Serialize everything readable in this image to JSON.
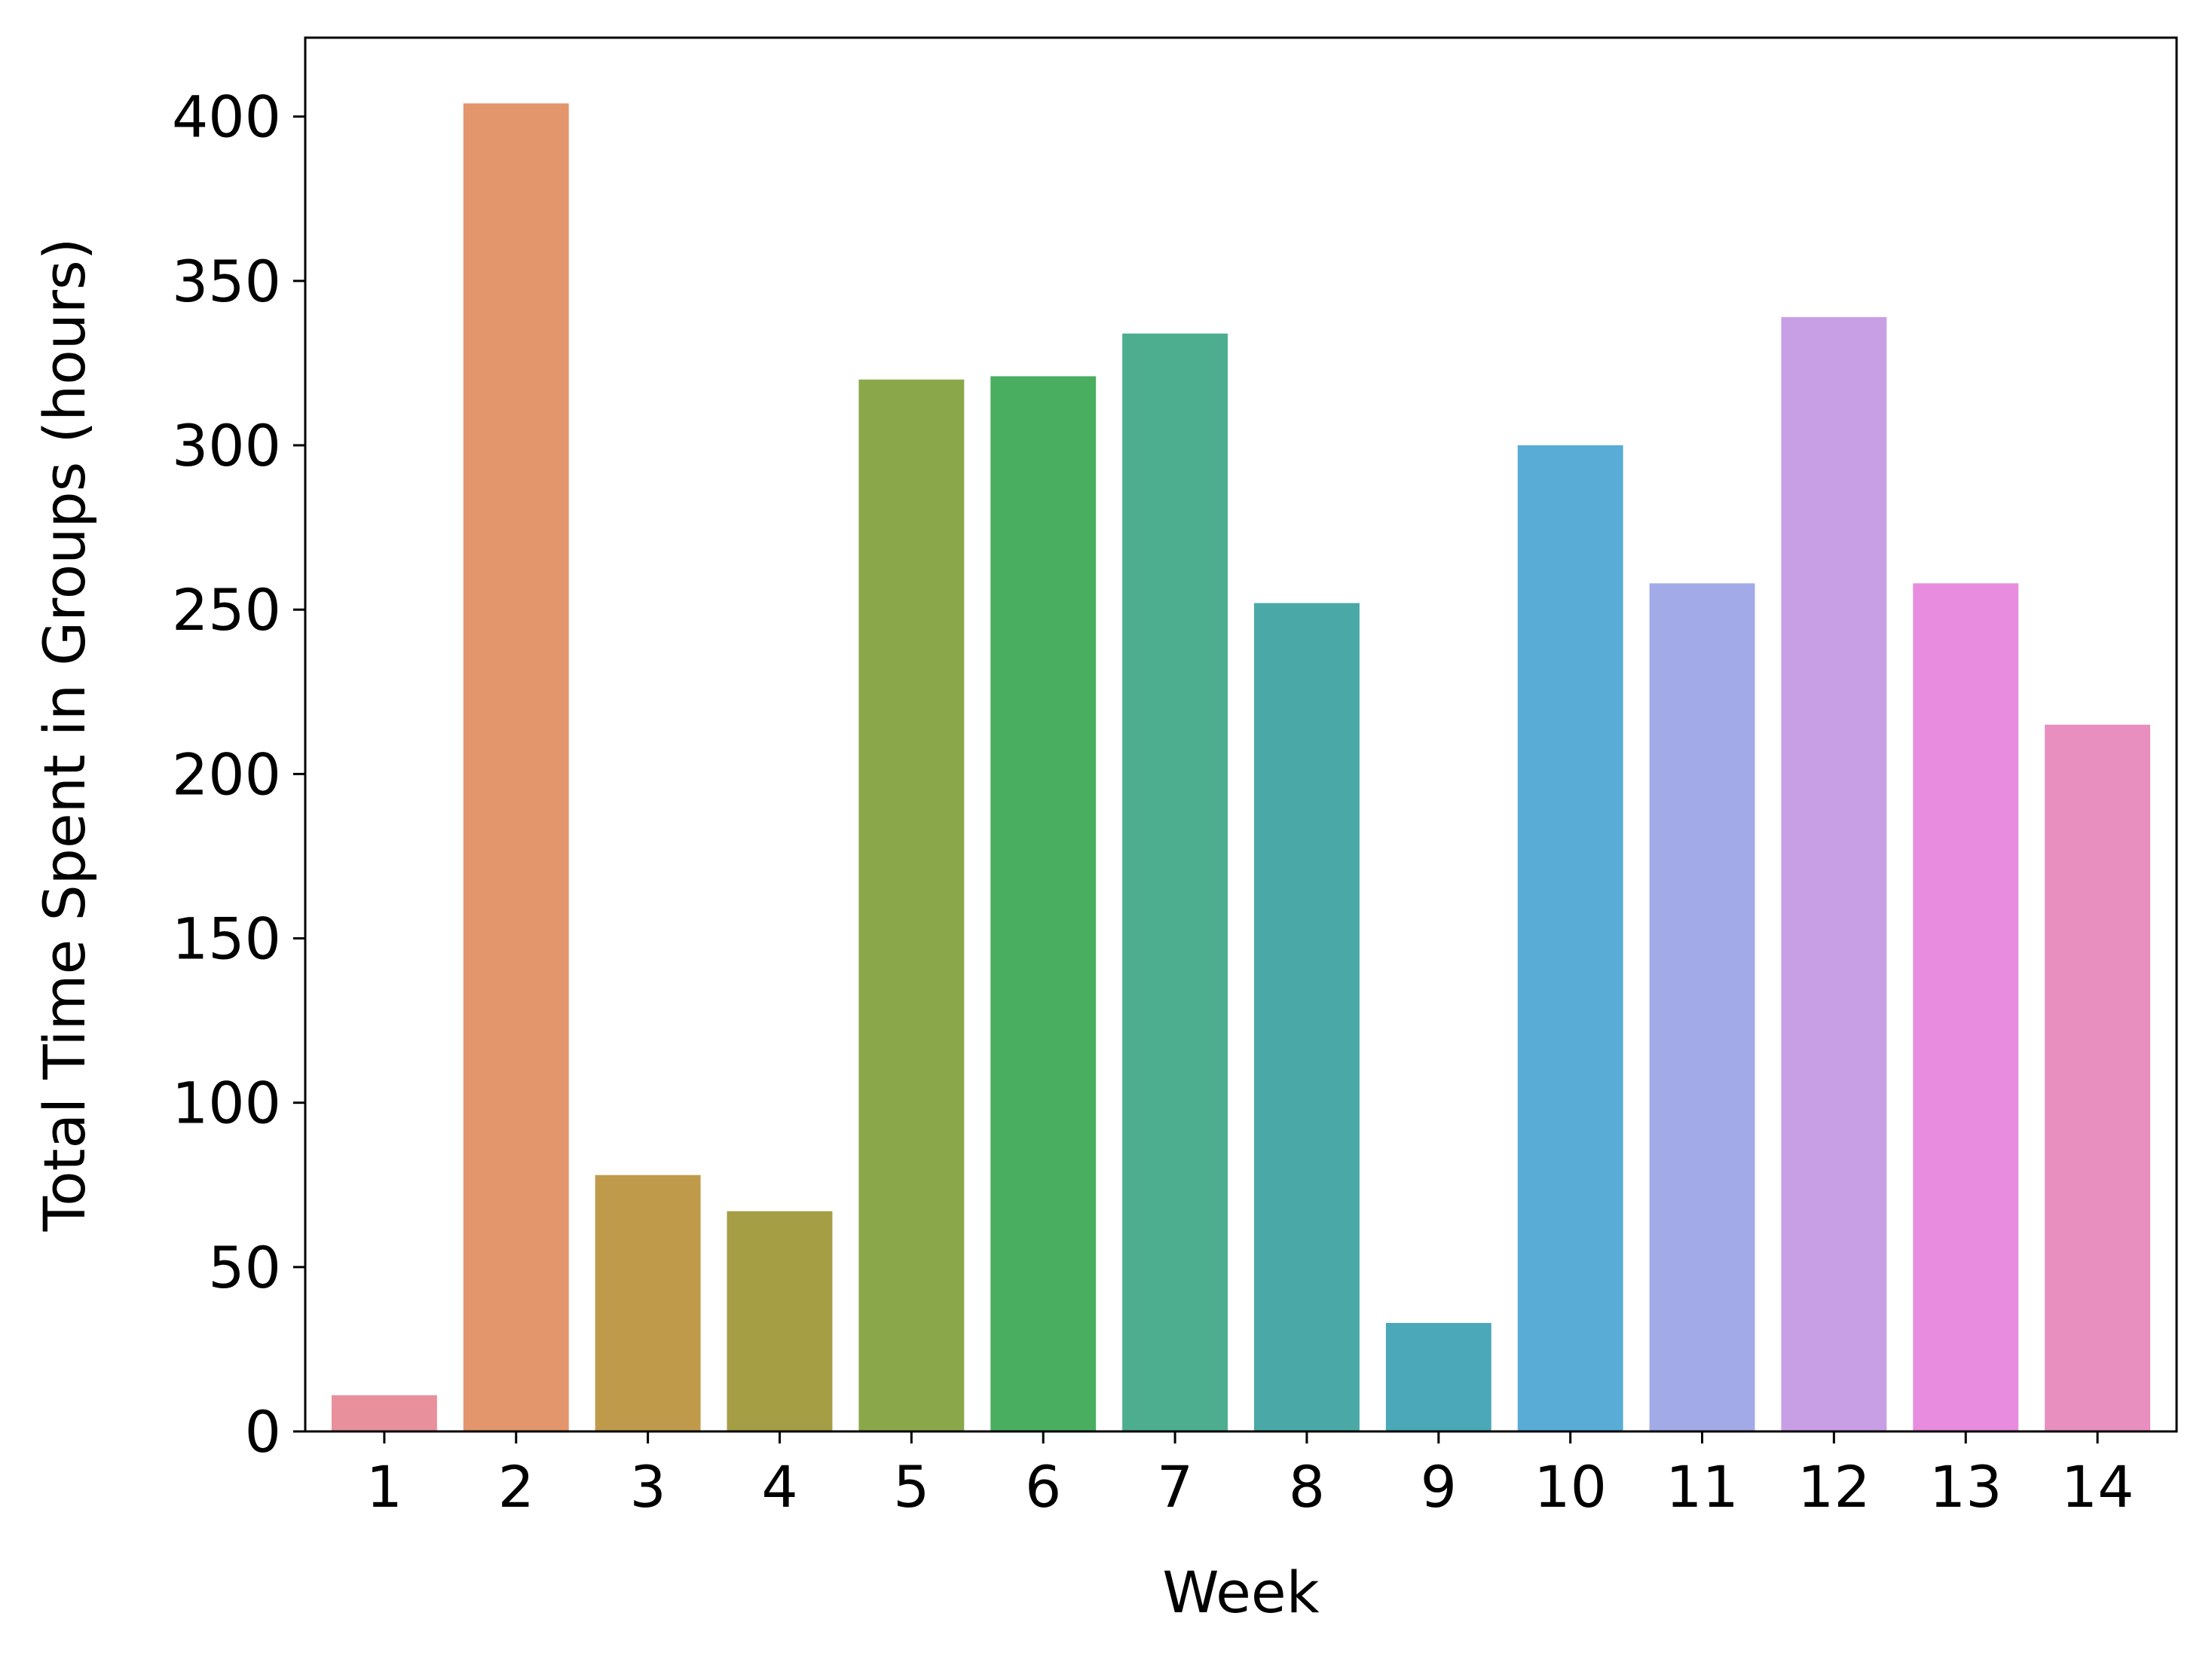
{
  "chart_data": {
    "type": "bar",
    "title": "",
    "xlabel": "Week",
    "ylabel": "Total Time Spent in Groups (hours)",
    "categories": [
      "1",
      "2",
      "3",
      "4",
      "5",
      "6",
      "7",
      "8",
      "9",
      "10",
      "11",
      "12",
      "13",
      "14"
    ],
    "values": [
      11,
      404,
      78,
      67,
      320,
      321,
      334,
      252,
      33,
      300,
      258,
      339,
      258,
      215
    ],
    "ylim": [
      0,
      424
    ],
    "yticks": [
      0,
      50,
      100,
      150,
      200,
      250,
      300,
      350,
      400
    ],
    "grid": false,
    "colors": [
      "#e8909c",
      "#e3956b",
      "#c09a4b",
      "#a69e45",
      "#8aa84a",
      "#4aae60",
      "#4cae8f",
      "#4aa9a6",
      "#4aa8b8",
      "#58acd6",
      "#a2abe8",
      "#c89fe5",
      "#e88cdf",
      "#e88fbf"
    ]
  }
}
